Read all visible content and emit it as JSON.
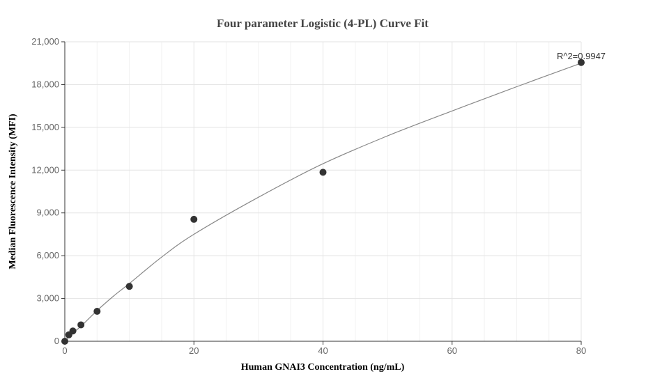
{
  "chart_data": {
    "type": "scatter",
    "title": "Four parameter Logistic (4-PL) Curve Fit",
    "xlabel": "Human GNAI3 Concentration (ng/mL)",
    "ylabel": "Median Fluorescence Intensity (MFI)",
    "xlim": [
      0,
      80
    ],
    "ylim": [
      0,
      21000
    ],
    "x_ticks": [
      0,
      20,
      40,
      60,
      80
    ],
    "x_tick_labels": [
      "0",
      "20",
      "40",
      "60",
      "80"
    ],
    "y_ticks": [
      0,
      3000,
      6000,
      9000,
      12000,
      15000,
      18000,
      21000
    ],
    "y_tick_labels": [
      "0",
      "3,000",
      "6,000",
      "9,000",
      "12,000",
      "15,000",
      "18,000",
      "21,000"
    ],
    "grid": true,
    "annotation": "R^2=0.9947",
    "series": [
      {
        "kind": "points",
        "color": "#333333",
        "x": [
          0,
          0.625,
          1.25,
          2.5,
          5,
          10,
          20,
          40,
          80
        ],
        "y": [
          0,
          450,
          720,
          1150,
          2100,
          3850,
          8550,
          11850,
          19550
        ]
      },
      {
        "kind": "fit-curve",
        "color": "#888888",
        "x": [
          0,
          1,
          2.5,
          5,
          7.5,
          10,
          15,
          20,
          30,
          40,
          50,
          60,
          70,
          80
        ],
        "y": [
          0,
          500,
          1050,
          2150,
          3150,
          4050,
          5900,
          7500,
          10100,
          12450,
          14400,
          16150,
          17850,
          19500
        ]
      }
    ]
  }
}
